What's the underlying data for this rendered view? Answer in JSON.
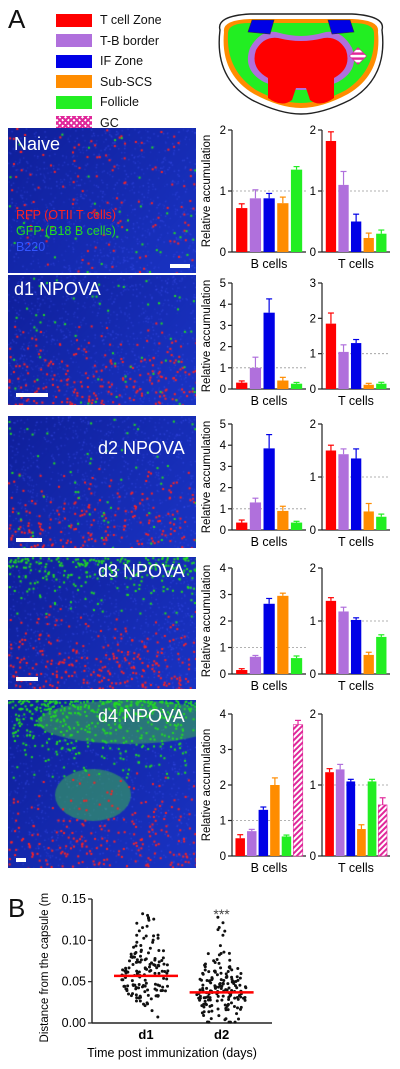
{
  "panel_labels": {
    "a": "A",
    "b": "B"
  },
  "legend": {
    "items": [
      {
        "label": "T cell Zone",
        "color": "#ff0000",
        "pattern": false
      },
      {
        "label": "T-B border",
        "color": "#b070dc",
        "pattern": false
      },
      {
        "label": "IF Zone",
        "color": "#0000e6",
        "pattern": false
      },
      {
        "label": "Sub-SCS",
        "color": "#ff8c00",
        "pattern": false
      },
      {
        "label": "Follicle",
        "color": "#22ee22",
        "pattern": false
      },
      {
        "label": "GC",
        "color": "#e0289a",
        "pattern": true
      }
    ]
  },
  "micrographs": [
    {
      "label": "Naive"
    },
    {
      "label": "d1 NPOVA"
    },
    {
      "label": "d2 NPOVA"
    },
    {
      "label": "d3 NPOVA"
    },
    {
      "label": "d4 NPOVA"
    }
  ],
  "micrograph_key": {
    "rfp": "RFP (OTII T cells)",
    "gfp": "GFP (B18 B cells)",
    "b220": "B220",
    "colors": {
      "rfp": "#ff2222",
      "gfp": "#22dd22",
      "b220": "#3355ff"
    }
  },
  "chart_data": [
    {
      "type": "bar",
      "panel": "Naive",
      "xlabel": "B cells",
      "ylabel": "Relative accumulation",
      "ylim": [
        0,
        2
      ],
      "yticks": [
        0,
        1,
        2
      ],
      "reference_line": 1,
      "categories": [
        "T cell Zone",
        "T-B border",
        "IF Zone",
        "Sub-SCS",
        "Follicle"
      ],
      "values": [
        0.72,
        0.88,
        0.88,
        0.8,
        1.35
      ],
      "errors": [
        0.07,
        0.14,
        0.08,
        0.1,
        0.05
      ]
    },
    {
      "type": "bar",
      "panel": "Naive",
      "xlabel": "T cells",
      "ylabel": "",
      "ylim": [
        0,
        2
      ],
      "yticks": [
        0,
        1,
        2
      ],
      "reference_line": 1,
      "categories": [
        "T cell Zone",
        "T-B border",
        "IF Zone",
        "Sub-SCS",
        "Follicle"
      ],
      "values": [
        1.82,
        1.1,
        0.5,
        0.23,
        0.3
      ],
      "errors": [
        0.15,
        0.22,
        0.12,
        0.08,
        0.06
      ]
    },
    {
      "type": "bar",
      "panel": "d1 NPOVA",
      "xlabel": "B cells",
      "ylabel": "Relative accumulation",
      "ylim": [
        0,
        5
      ],
      "yticks": [
        0,
        1,
        2,
        3,
        4,
        5
      ],
      "reference_line": 1,
      "categories": [
        "T cell Zone",
        "T-B border",
        "IF Zone",
        "Sub-SCS",
        "Follicle"
      ],
      "values": [
        0.3,
        1.0,
        3.6,
        0.4,
        0.25
      ],
      "errors": [
        0.08,
        0.5,
        0.65,
        0.15,
        0.06
      ]
    },
    {
      "type": "bar",
      "panel": "d1 NPOVA",
      "xlabel": "T cells",
      "ylabel": "",
      "ylim": [
        0,
        3
      ],
      "yticks": [
        0,
        1,
        2,
        3
      ],
      "reference_line": 1,
      "categories": [
        "T cell Zone",
        "T-B border",
        "IF Zone",
        "Sub-SCS",
        "Follicle"
      ],
      "values": [
        1.85,
        1.05,
        1.3,
        0.12,
        0.15
      ],
      "errors": [
        0.3,
        0.2,
        0.1,
        0.04,
        0.04
      ]
    },
    {
      "type": "bar",
      "panel": "d2 NPOVA",
      "xlabel": "B cells",
      "ylabel": "Relative accumulation",
      "ylim": [
        0,
        5
      ],
      "yticks": [
        0,
        1,
        2,
        3,
        4,
        5
      ],
      "reference_line": 1,
      "categories": [
        "T cell Zone",
        "T-B border",
        "IF Zone",
        "Sub-SCS",
        "Follicle"
      ],
      "values": [
        0.35,
        1.3,
        3.85,
        0.9,
        0.35
      ],
      "errors": [
        0.12,
        0.2,
        0.65,
        0.22,
        0.06
      ]
    },
    {
      "type": "bar",
      "panel": "d2 NPOVA",
      "xlabel": "T cells",
      "ylabel": "",
      "ylim": [
        0,
        2
      ],
      "yticks": [
        0,
        1,
        2
      ],
      "reference_line": 1,
      "categories": [
        "T cell Zone",
        "T-B border",
        "IF Zone",
        "Sub-SCS",
        "Follicle"
      ],
      "values": [
        1.5,
        1.43,
        1.35,
        0.35,
        0.25
      ],
      "errors": [
        0.1,
        0.1,
        0.18,
        0.15,
        0.05
      ]
    },
    {
      "type": "bar",
      "panel": "d3 NPOVA",
      "xlabel": "B cells",
      "ylabel": "Relative accumulation",
      "ylim": [
        0,
        4
      ],
      "yticks": [
        0,
        1,
        2,
        3,
        4
      ],
      "reference_line": 1,
      "categories": [
        "T cell Zone",
        "T-B border",
        "IF Zone",
        "Sub-SCS",
        "Follicle"
      ],
      "values": [
        0.15,
        0.65,
        2.65,
        2.95,
        0.6
      ],
      "errors": [
        0.05,
        0.05,
        0.2,
        0.1,
        0.08
      ]
    },
    {
      "type": "bar",
      "panel": "d3 NPOVA",
      "xlabel": "T cells",
      "ylabel": "",
      "ylim": [
        0,
        2
      ],
      "yticks": [
        0,
        1,
        2
      ],
      "reference_line": 1,
      "categories": [
        "T cell Zone",
        "T-B border",
        "IF Zone",
        "Sub-SCS",
        "Follicle"
      ],
      "values": [
        1.38,
        1.18,
        1.02,
        0.36,
        0.7
      ],
      "errors": [
        0.06,
        0.08,
        0.04,
        0.05,
        0.04
      ]
    },
    {
      "type": "bar",
      "panel": "d4 NPOVA",
      "xlabel": "B cells",
      "ylabel": "Relative accumulation",
      "ylim": [
        0,
        4
      ],
      "yticks": [
        0,
        1,
        2,
        3,
        4
      ],
      "reference_line": 1,
      "categories": [
        "T cell Zone",
        "T-B border",
        "IF Zone",
        "Sub-SCS",
        "Follicle",
        "GC"
      ],
      "values": [
        0.5,
        0.7,
        1.3,
        2.0,
        0.55,
        3.7
      ],
      "errors": [
        0.1,
        0.05,
        0.08,
        0.2,
        0.04,
        0.12
      ]
    },
    {
      "type": "bar",
      "panel": "d4 NPOVA",
      "xlabel": "T cells",
      "ylabel": "",
      "ylim": [
        0,
        2
      ],
      "yticks": [
        0,
        1,
        2
      ],
      "reference_line": 1,
      "categories": [
        "T cell Zone",
        "T-B border",
        "IF Zone",
        "Sub-SCS",
        "Follicle",
        "GC"
      ],
      "values": [
        1.18,
        1.22,
        1.05,
        0.38,
        1.05,
        0.72
      ],
      "errors": [
        0.05,
        0.07,
        0.03,
        0.06,
        0.03,
        0.1
      ]
    },
    {
      "type": "scatter",
      "panel": "B",
      "title": "",
      "xlabel": "Time post immunization (days)",
      "ylabel": "Distance from the capsule (mm)",
      "ylim": [
        0,
        0.15
      ],
      "yticks": [
        0.0,
        0.05,
        0.1,
        0.15
      ],
      "ytick_labels": [
        "0.00",
        "0.05",
        "0.10",
        "0.15"
      ],
      "categories": [
        "d1",
        "d2"
      ],
      "means": [
        0.057,
        0.037
      ],
      "significance": {
        "category": "d2",
        "label": "***"
      },
      "mean_line_color": "#ff0000",
      "point_counts": [
        150,
        170
      ]
    }
  ]
}
